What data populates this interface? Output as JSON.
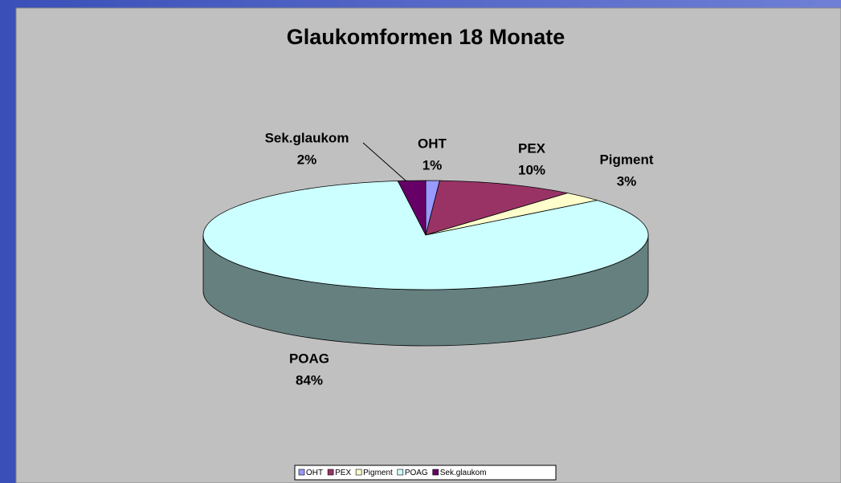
{
  "chart_data": {
    "type": "pie",
    "title": "Glaukomformen 18 Monate",
    "categories": [
      "OHT",
      "PEX",
      "Pigment",
      "POAG",
      "Sek.glaukom"
    ],
    "values": [
      1,
      10,
      3,
      84,
      2
    ],
    "value_labels": [
      "1%",
      "10%",
      "3%",
      "84%",
      "2%"
    ],
    "colors": [
      "#9999ff",
      "#993366",
      "#ffffcc",
      "#ccffff",
      "#660066"
    ],
    "legend": "bottom"
  }
}
